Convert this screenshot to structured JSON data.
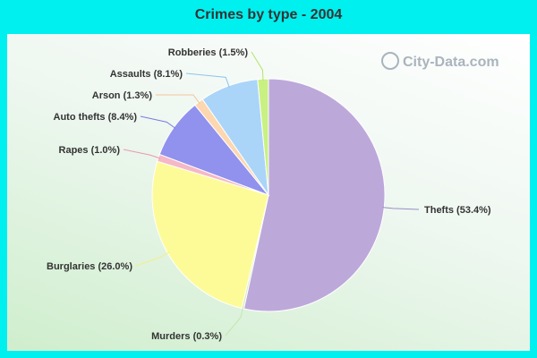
{
  "title": "Crimes by type - 2004",
  "watermark": "City-Data.com",
  "chart_data": {
    "type": "pie",
    "title": "Crimes by type - 2004",
    "slices": [
      {
        "label": "Thefts (53.4%)",
        "category": "Thefts",
        "value": 53.4,
        "color": "#bda8da",
        "line": "#9a8ec4"
      },
      {
        "label": "Murders (0.3%)",
        "category": "Murders",
        "value": 0.3,
        "color": "#d4ecc0",
        "line": "#c4e6b2"
      },
      {
        "label": "Burglaries (26.0%)",
        "category": "Burglaries",
        "value": 26.0,
        "color": "#fdfb98",
        "line": "#f3ef88"
      },
      {
        "label": "Rapes (1.0%)",
        "category": "Rapes",
        "value": 1.0,
        "color": "#f5b8c6",
        "line": "#e89aae"
      },
      {
        "label": "Auto thefts (8.4%)",
        "category": "Auto thefts",
        "value": 8.4,
        "color": "#9191ee",
        "line": "#7b7be0"
      },
      {
        "label": "Arson (1.3%)",
        "category": "Arson",
        "value": 1.3,
        "color": "#fcd7b0",
        "line": "#f3c49a"
      },
      {
        "label": "Assaults (8.1%)",
        "category": "Assaults",
        "value": 8.1,
        "color": "#aad5f8",
        "line": "#8ec4ee"
      },
      {
        "label": "Robberies (1.5%)",
        "category": "Robberies",
        "value": 1.5,
        "color": "#c9f083",
        "line": "#b6e26c"
      }
    ]
  }
}
